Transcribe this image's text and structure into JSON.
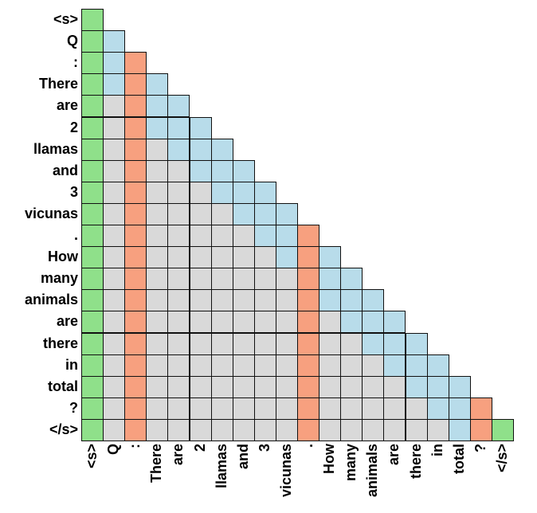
{
  "tokens": [
    "<s>",
    "Q",
    ":",
    "There",
    "are",
    "2",
    "llamas",
    "and",
    "3",
    "vicunas",
    ".",
    "How",
    "many",
    "animals",
    "are",
    "there",
    "in",
    "total",
    "?",
    "</s>"
  ],
  "legend_colors": {
    "green": "#8fe08a",
    "blue": "#b8dcea",
    "orange": "#f7a07f",
    "gray": "#d9d9d9"
  },
  "orange_columns": [
    2,
    10,
    18
  ],
  "green_columns": [
    0,
    19
  ],
  "blue_band_width": 3
}
